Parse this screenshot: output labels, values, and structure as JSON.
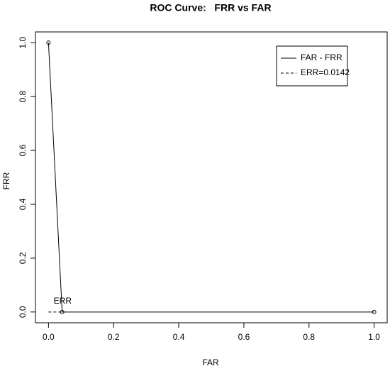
{
  "chart_data": {
    "type": "line",
    "title": "ROC Curve:   FRR vs FAR",
    "x_label": "FAR",
    "y_label": "FRR",
    "xlim": [
      -0.04,
      1.04
    ],
    "ylim": [
      -0.04,
      1.04
    ],
    "xticks": [
      {
        "value": 0,
        "label": "0.0"
      },
      0.2,
      0.4,
      0.6,
      0.8,
      {
        "value": 1,
        "label": "1.0"
      }
    ],
    "yticks": [
      {
        "value": 0,
        "label": "0.0"
      },
      0.2,
      0.4,
      0.6,
      0.8,
      {
        "value": 1,
        "label": "1.0"
      }
    ],
    "legend": "topright",
    "series": [
      {
        "name": "FAR - FRR",
        "color": "#000000",
        "linestyle": "solid",
        "markers": true,
        "x": [
          0,
          0.042,
          1
        ],
        "values": [
          1,
          0,
          0
        ]
      },
      {
        "name": "ERR=0.0142",
        "color": "#000000",
        "linestyle": "dashed",
        "markers": false,
        "x": [
          0,
          0.042
        ],
        "values": [
          0,
          0
        ]
      }
    ],
    "annotations": [
      {
        "text": "ERR",
        "x": 0.042,
        "y": 0.04
      }
    ]
  }
}
